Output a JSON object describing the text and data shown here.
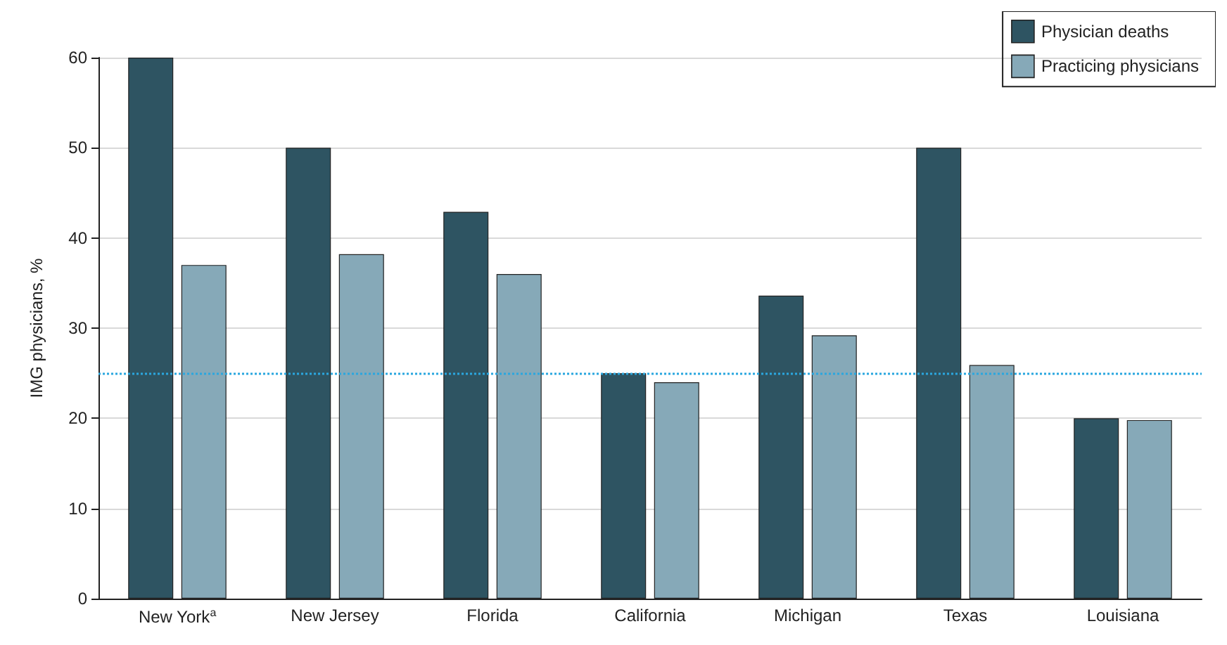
{
  "chart_data": {
    "type": "bar",
    "ylabel": "IMG physicians, %",
    "categories": [
      "New York$^{a}$",
      "New Jersey",
      "Florida",
      "California",
      "Michigan",
      "Texas",
      "Louisiana"
    ],
    "series": [
      {
        "name": "Physician deaths",
        "color": "#2e5462",
        "values": [
          60,
          50,
          42.9,
          25,
          33.6,
          50,
          20
        ]
      },
      {
        "name": "Practicing physicians",
        "color": "#86a9b8",
        "values": [
          37,
          38.2,
          36,
          24,
          29.2,
          25.9,
          19.8
        ]
      }
    ],
    "ylim": [
      0,
      60
    ],
    "yticks": [
      0,
      10,
      20,
      30,
      40,
      50,
      60
    ],
    "grid": "y",
    "legend": "top right",
    "ref_lines": [
      {
        "axis": "y",
        "value": 25,
        "color": "#2aa7df",
        "line_style": "dotted"
      }
    ]
  }
}
